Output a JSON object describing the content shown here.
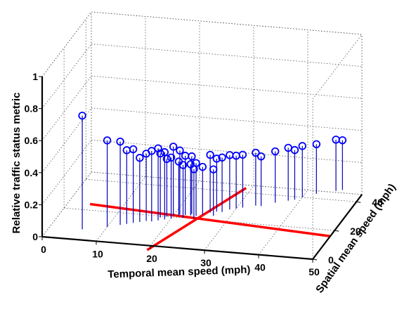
{
  "chart_data": {
    "type": "stem3d-scatter",
    "xlabel": "Temporal mean speed (mph)",
    "ylabel": "Spatial mean speed (mph)",
    "zlabel": "Relative traffic status metric",
    "xlim": [
      0,
      50
    ],
    "ylim": [
      0,
      45
    ],
    "zlim": [
      0,
      1
    ],
    "x_ticks": [
      0,
      10,
      20,
      30,
      40,
      50
    ],
    "y_ticks": [
      0,
      20,
      40
    ],
    "z_ticks": [
      0,
      0.2,
      0.4,
      0.6,
      0.8,
      1
    ],
    "x_tick_labels": [
      "0",
      "10",
      "20",
      "30",
      "40",
      "50"
    ],
    "y_tick_labels": [
      "0",
      "20",
      "40"
    ],
    "z_tick_labels": [
      "0",
      "0.2",
      "0.4",
      "0.6",
      "0.8",
      "1"
    ],
    "grid": true,
    "marker": "circle",
    "marker_color": "#0000ff",
    "stem_color": "#0000bb",
    "threshold_lines": [
      {
        "axis": "x",
        "value": 20,
        "color": "#ff0000"
      },
      {
        "axis": "y",
        "value": 20,
        "color": "#ff0000"
      }
    ],
    "points": [
      {
        "x": 6,
        "y": 7,
        "z": 0.71
      },
      {
        "x": 10,
        "y": 10,
        "z": 0.54
      },
      {
        "x": 12,
        "y": 12,
        "z": 0.52
      },
      {
        "x": 13,
        "y": 13,
        "z": 0.46
      },
      {
        "x": 14,
        "y": 14,
        "z": 0.46
      },
      {
        "x": 15,
        "y": 15,
        "z": 0.4
      },
      {
        "x": 16,
        "y": 16,
        "z": 0.42
      },
      {
        "x": 17,
        "y": 16,
        "z": 0.44
      },
      {
        "x": 18,
        "y": 17,
        "z": 0.45
      },
      {
        "x": 18,
        "y": 19,
        "z": 0.4
      },
      {
        "x": 19,
        "y": 18,
        "z": 0.42
      },
      {
        "x": 19,
        "y": 20,
        "z": 0.36
      },
      {
        "x": 20,
        "y": 21,
        "z": 0.43
      },
      {
        "x": 20,
        "y": 19,
        "z": 0.38
      },
      {
        "x": 21,
        "y": 22,
        "z": 0.4
      },
      {
        "x": 21,
        "y": 21,
        "z": 0.34
      },
      {
        "x": 22,
        "y": 22,
        "z": 0.37
      },
      {
        "x": 22,
        "y": 20,
        "z": 0.33
      },
      {
        "x": 23,
        "y": 23,
        "z": 0.36
      },
      {
        "x": 23,
        "y": 22,
        "z": 0.32
      },
      {
        "x": 24,
        "y": 22,
        "z": 0.33
      },
      {
        "x": 24,
        "y": 20,
        "z": 0.31
      },
      {
        "x": 25,
        "y": 23,
        "z": 0.3
      },
      {
        "x": 26,
        "y": 25,
        "z": 0.36
      },
      {
        "x": 27,
        "y": 23,
        "z": 0.29
      },
      {
        "x": 27,
        "y": 26,
        "z": 0.33
      },
      {
        "x": 28,
        "y": 26,
        "z": 0.34
      },
      {
        "x": 29,
        "y": 28,
        "z": 0.34
      },
      {
        "x": 30,
        "y": 29,
        "z": 0.33
      },
      {
        "x": 31,
        "y": 30,
        "z": 0.33
      },
      {
        "x": 33,
        "y": 32,
        "z": 0.33
      },
      {
        "x": 34,
        "y": 32,
        "z": 0.31
      },
      {
        "x": 36,
        "y": 35,
        "z": 0.32
      },
      {
        "x": 38,
        "y": 37,
        "z": 0.33
      },
      {
        "x": 39,
        "y": 38,
        "z": 0.31
      },
      {
        "x": 40,
        "y": 40,
        "z": 0.32
      },
      {
        "x": 42,
        "y": 43,
        "z": 0.31
      },
      {
        "x": 45,
        "y": 46,
        "z": 0.32
      },
      {
        "x": 46,
        "y": 47,
        "z": 0.31
      }
    ]
  }
}
